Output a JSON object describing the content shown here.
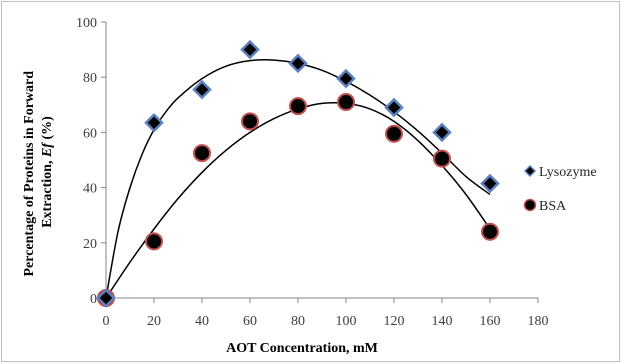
{
  "chart_data": {
    "type": "scatter",
    "xlabel": "AOT Concentration, mM",
    "ylabel_line1": "Percentage of Proteins in Forward",
    "ylabel_line2_prefix": "Extraction, ",
    "ylabel_line2_italic": "Ef",
    "ylabel_line2_suffix": " (%)",
    "xlim": [
      0,
      180
    ],
    "ylim": [
      0,
      100
    ],
    "xticks": [
      0,
      20,
      40,
      60,
      80,
      100,
      120,
      140,
      160,
      180
    ],
    "yticks": [
      0,
      20,
      40,
      60,
      80,
      100
    ],
    "grid": false,
    "legend_position": "right",
    "series": [
      {
        "name": "Lysozyme",
        "marker": "diamond",
        "color": "#5b7fbf",
        "x": [
          0,
          20,
          40,
          60,
          80,
          100,
          120,
          140,
          160
        ],
        "y": [
          0,
          63.5,
          75.5,
          90,
          85,
          79.5,
          69,
          60,
          41.5
        ]
      },
      {
        "name": "BSA",
        "marker": "circle",
        "color": "#c0504d",
        "x": [
          0,
          20,
          40,
          60,
          80,
          100,
          120,
          140,
          160
        ],
        "y": [
          0,
          20.5,
          52.5,
          64,
          69.5,
          71,
          59.5,
          50.5,
          24
        ]
      }
    ],
    "trendlines": [
      {
        "series": "Lysozyme",
        "x": [
          0,
          5,
          10,
          15,
          20,
          25,
          30,
          40,
          50,
          60,
          70,
          80,
          90,
          100,
          110,
          120,
          130,
          140,
          150,
          160
        ],
        "y": [
          0,
          24,
          40,
          52,
          61,
          67.5,
          72.5,
          79.5,
          84,
          86,
          86.2,
          85,
          82.5,
          78.5,
          73.5,
          67.5,
          60.5,
          52.5,
          44,
          37.5
        ]
      },
      {
        "series": "BSA",
        "x": [
          0,
          10,
          20,
          30,
          40,
          50,
          60,
          70,
          80,
          90,
          100,
          110,
          120,
          130,
          140,
          150,
          160
        ],
        "y": [
          0,
          13,
          25,
          36,
          45.5,
          53.5,
          60,
          65,
          68.5,
          70.5,
          70.5,
          68.5,
          64,
          57,
          48,
          37.5,
          25
        ]
      }
    ]
  }
}
